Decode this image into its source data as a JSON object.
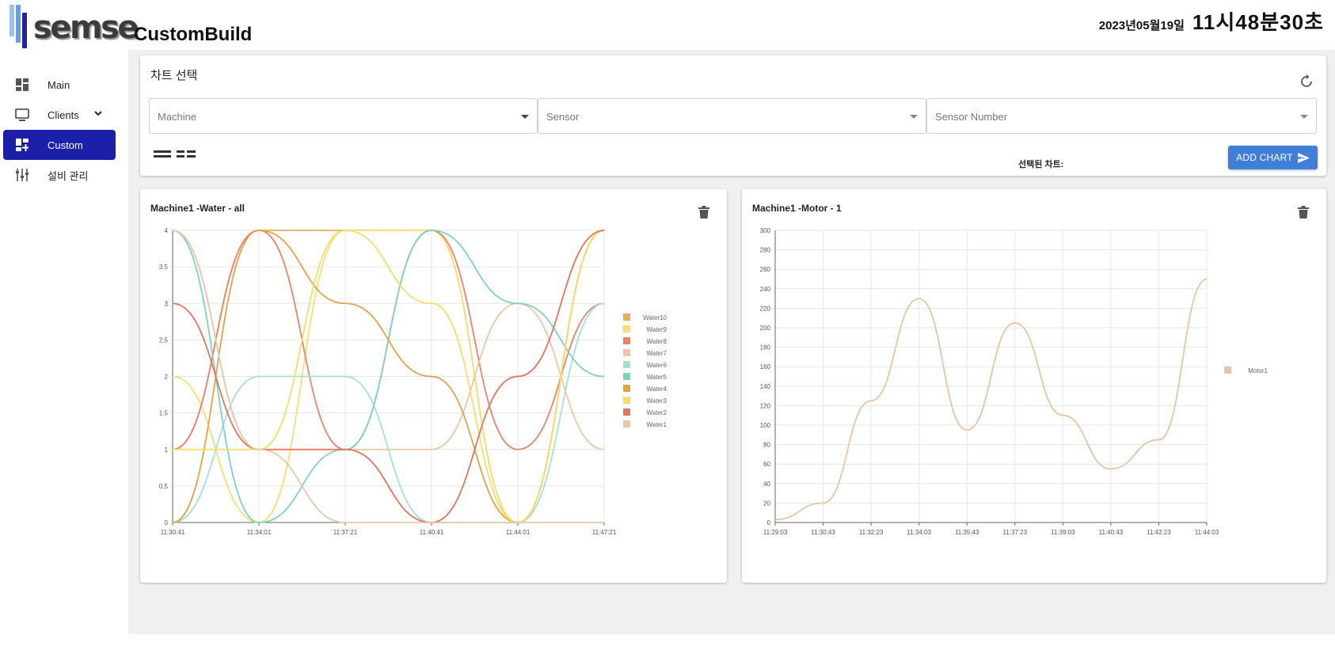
{
  "app": {
    "logo_text": "semse",
    "page_title": "CustomBuild"
  },
  "clock": {
    "date": "2023년05월19일",
    "time": "11시48분30초"
  },
  "sidebar": {
    "items": [
      {
        "label": "Main",
        "icon": "dashboard-icon"
      },
      {
        "label": "Clients",
        "icon": "monitor-icon",
        "has_children": true
      },
      {
        "label": "Custom",
        "icon": "dashboard-add-icon",
        "active": true
      },
      {
        "label": "설비 관리",
        "icon": "equalizer-icon"
      }
    ]
  },
  "chart_select": {
    "title": "차트 선택",
    "machine_placeholder": "Machine",
    "sensor_placeholder": "Sensor",
    "sensor_number_placeholder": "Sensor Number",
    "selected_label": "선택된 차트:",
    "add_button_label": "ADD CHART"
  },
  "colors": {
    "accent": "#1c1fa8",
    "button": "#3f7fd8",
    "background": "#f0f0f0"
  },
  "charts": {
    "water": {
      "title": "Machine1 -Water - all"
    },
    "motor": {
      "title": "Machine1 -Motor - 1"
    }
  },
  "chart_data": [
    {
      "type": "line",
      "title": "Machine1 -Water - all",
      "x": [
        "11:30:41",
        "11:34:01",
        "11:37:21",
        "11:40:41",
        "11:44:01",
        "11:47:21"
      ],
      "ylim": [
        0,
        4
      ],
      "yticks": [
        "0",
        "0.5",
        "1",
        "1.5",
        "2",
        "2.5",
        "3",
        "3.5",
        "4"
      ],
      "grid": true,
      "legend_position": "right",
      "series": [
        {
          "name": "Water10",
          "color": "#e1b060",
          "values": [
            1,
            4,
            4,
            4,
            0,
            4
          ]
        },
        {
          "name": "Water9",
          "color": "#f6df75",
          "values": [
            2,
            0,
            4,
            4,
            0,
            4
          ]
        },
        {
          "name": "Water8",
          "color": "#e8836e",
          "values": [
            1,
            4,
            1,
            4,
            1,
            3
          ]
        },
        {
          "name": "Water7",
          "color": "#ecc7a5",
          "values": [
            4,
            1,
            1,
            1,
            3,
            1
          ]
        },
        {
          "name": "Water6",
          "color": "#a5e0d2",
          "values": [
            0,
            2,
            2,
            0,
            0,
            3
          ]
        },
        {
          "name": "Water5",
          "color": "#7fd1c0",
          "values": [
            4,
            0,
            1,
            4,
            3,
            2
          ]
        },
        {
          "name": "Water4",
          "color": "#e3a24a",
          "values": [
            0,
            4,
            3,
            2,
            0,
            4
          ]
        },
        {
          "name": "Water3",
          "color": "#f5dd6d",
          "values": [
            1,
            1,
            4,
            3,
            0,
            4
          ]
        },
        {
          "name": "Water2",
          "color": "#e3745f",
          "values": [
            3,
            1,
            1,
            0,
            2,
            4
          ]
        },
        {
          "name": "Water1",
          "color": "#e9c8a8",
          "values": [
            4,
            1,
            0,
            0,
            0,
            0
          ]
        }
      ]
    },
    {
      "type": "line",
      "title": "Machine1 -Motor - 1",
      "x": [
        "11:29:03",
        "11:30:43",
        "11:32:23",
        "11:34:03",
        "11:35:43",
        "11:37:23",
        "11:39:03",
        "11:40:43",
        "11:42:23",
        "11:44:03"
      ],
      "ylim": [
        0,
        300
      ],
      "yticks": [
        "0",
        "20",
        "40",
        "60",
        "80",
        "100",
        "120",
        "140",
        "160",
        "180",
        "200",
        "220",
        "240",
        "260",
        "280",
        "300"
      ],
      "grid": true,
      "legend_position": "right",
      "series": [
        {
          "name": "Motor1",
          "color": "#e9c3a2",
          "values": [
            3,
            20,
            125,
            230,
            95,
            205,
            110,
            55,
            85,
            250
          ]
        }
      ]
    }
  ]
}
